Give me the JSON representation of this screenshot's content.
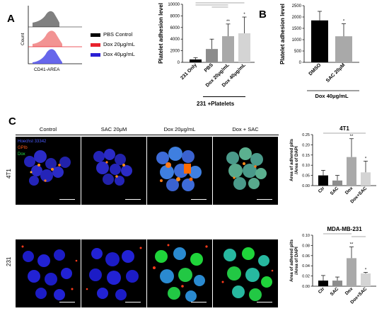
{
  "panels": {
    "a": "A",
    "b": "B",
    "c": "C"
  },
  "panelA": {
    "hist": {
      "ylabel": "Count",
      "xlabel": "CD41-AREA",
      "legend": [
        {
          "label": "PBS Control",
          "color": "#000000"
        },
        {
          "label": "Dox 20μg/mL",
          "color": "#e8222d"
        },
        {
          "label": "Dox 40μg/mL",
          "color": "#2a1fd4"
        }
      ]
    },
    "group_label": "231 +Platelets"
  },
  "panelC": {
    "col_headers": [
      "Control",
      "SAC 20μM",
      "Dox 20μg/mL",
      "Dox + SAC"
    ],
    "row_labels": [
      "4T1",
      "231"
    ],
    "stain_labels": [
      {
        "text": "Hoechst 33342",
        "color": "#4a5bff"
      },
      {
        "text": "GPIb",
        "color": "#ff5a1a"
      },
      {
        "text": "Dox",
        "color": "#27e04a"
      }
    ]
  },
  "chart_data": [
    {
      "id": "A-bar",
      "type": "bar",
      "title": "",
      "ylabel": "Platelet adhesion level",
      "categories": [
        "231 Only",
        "PBS",
        "Dox 20μg/mL",
        "Dox 40μg/mL"
      ],
      "values": [
        500,
        2300,
        4500,
        5000
      ],
      "errors": [
        300,
        1700,
        2100,
        2800
      ],
      "colors": [
        "#000000",
        "#8c8c8c",
        "#a9a9a9",
        "#d4d4d4"
      ],
      "ylim": [
        0,
        10000
      ],
      "yticks": [
        "0",
        "2000",
        "4000",
        "6000",
        "8000",
        "10000"
      ],
      "sig": [
        "",
        "",
        "**",
        "*"
      ]
    },
    {
      "id": "B-bar",
      "type": "bar",
      "title": "",
      "ylabel": "Platelet adhesion level",
      "categories": [
        "DMSO",
        "SAC 20μM"
      ],
      "values": [
        1850,
        1150
      ],
      "errors": [
        400,
        550
      ],
      "colors": [
        "#000000",
        "#a9a9a9"
      ],
      "ylim": [
        0,
        2500
      ],
      "yticks": [
        "0",
        "500",
        "1000",
        "1500",
        "2000",
        "2500"
      ],
      "sig": [
        "",
        "*"
      ],
      "xgroup": "Dox 40μg/mL"
    },
    {
      "id": "C-4T1",
      "type": "bar",
      "title": "4T1",
      "ylabel": "Area of adhered pits /Area of DAPI",
      "categories": [
        "Ctr",
        "SAC",
        "Dox",
        "Dox+SAC"
      ],
      "values": [
        0.05,
        0.025,
        0.14,
        0.065
      ],
      "errors": [
        0.025,
        0.025,
        0.09,
        0.055
      ],
      "colors": [
        "#000000",
        "#8c8c8c",
        "#a9a9a9",
        "#d4d4d4"
      ],
      "ylim": [
        0,
        0.25
      ],
      "yticks": [
        "0.00",
        "0.05",
        "0.10",
        "0.15",
        "0.20",
        "0.25"
      ],
      "sig": [
        "",
        "",
        "**",
        "*"
      ]
    },
    {
      "id": "C-231",
      "type": "bar",
      "title": "MDA-MB-231",
      "ylabel": "Area of adhered pits /Area of DAPI",
      "categories": [
        "Ctr",
        "SAC",
        "Dox",
        "Dox+SAC"
      ],
      "values": [
        0.011,
        0.011,
        0.055,
        0.025
      ],
      "errors": [
        0.01,
        0.007,
        0.022,
        0.002
      ],
      "colors": [
        "#000000",
        "#8c8c8c",
        "#a9a9a9",
        "#d4d4d4"
      ],
      "ylim": [
        0,
        0.1
      ],
      "yticks": [
        "0.00",
        "0.02",
        "0.04",
        "0.06",
        "0.08",
        "0.10"
      ],
      "sig": [
        "",
        "",
        "**",
        "*"
      ]
    }
  ]
}
